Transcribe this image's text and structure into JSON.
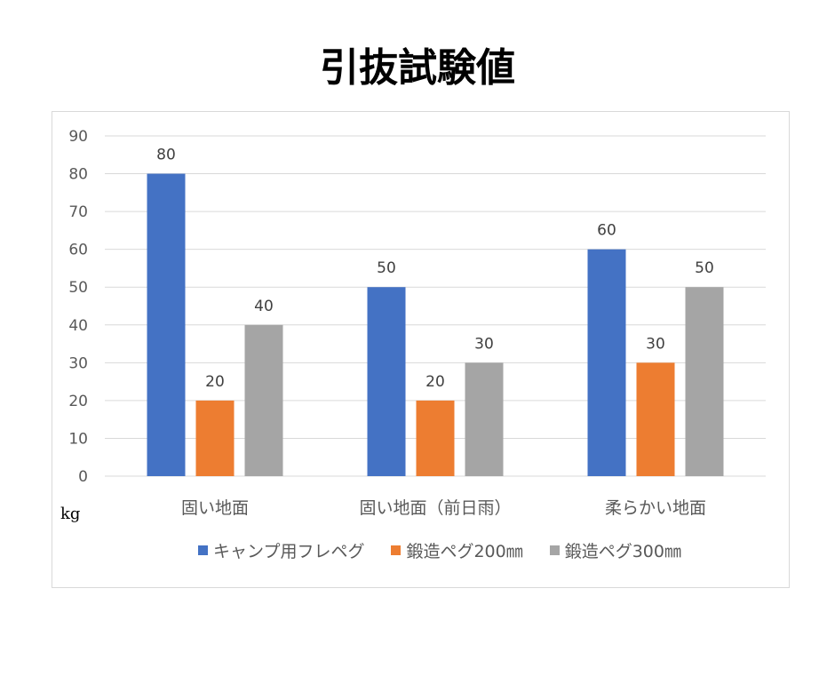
{
  "chart_data": {
    "type": "bar",
    "title": "引抜試験値",
    "ylabel": "kg",
    "xlabel": "",
    "ylim": [
      0,
      90
    ],
    "yticks": [
      0,
      10,
      20,
      30,
      40,
      50,
      60,
      70,
      80,
      90
    ],
    "grid": true,
    "legend_position": "bottom",
    "categories": [
      "固い地面",
      "固い地面（前日雨）",
      "柔らかい地面"
    ],
    "series": [
      {
        "name": "キャンプ用フレペグ",
        "color": "#4472c4",
        "values": [
          80,
          50,
          60
        ]
      },
      {
        "name": "鍛造ペグ200㎜",
        "color": "#ed7d31",
        "values": [
          20,
          20,
          30
        ]
      },
      {
        "name": "鍛造ペグ300㎜",
        "color": "#a5a5a5",
        "values": [
          40,
          30,
          50
        ]
      }
    ]
  }
}
